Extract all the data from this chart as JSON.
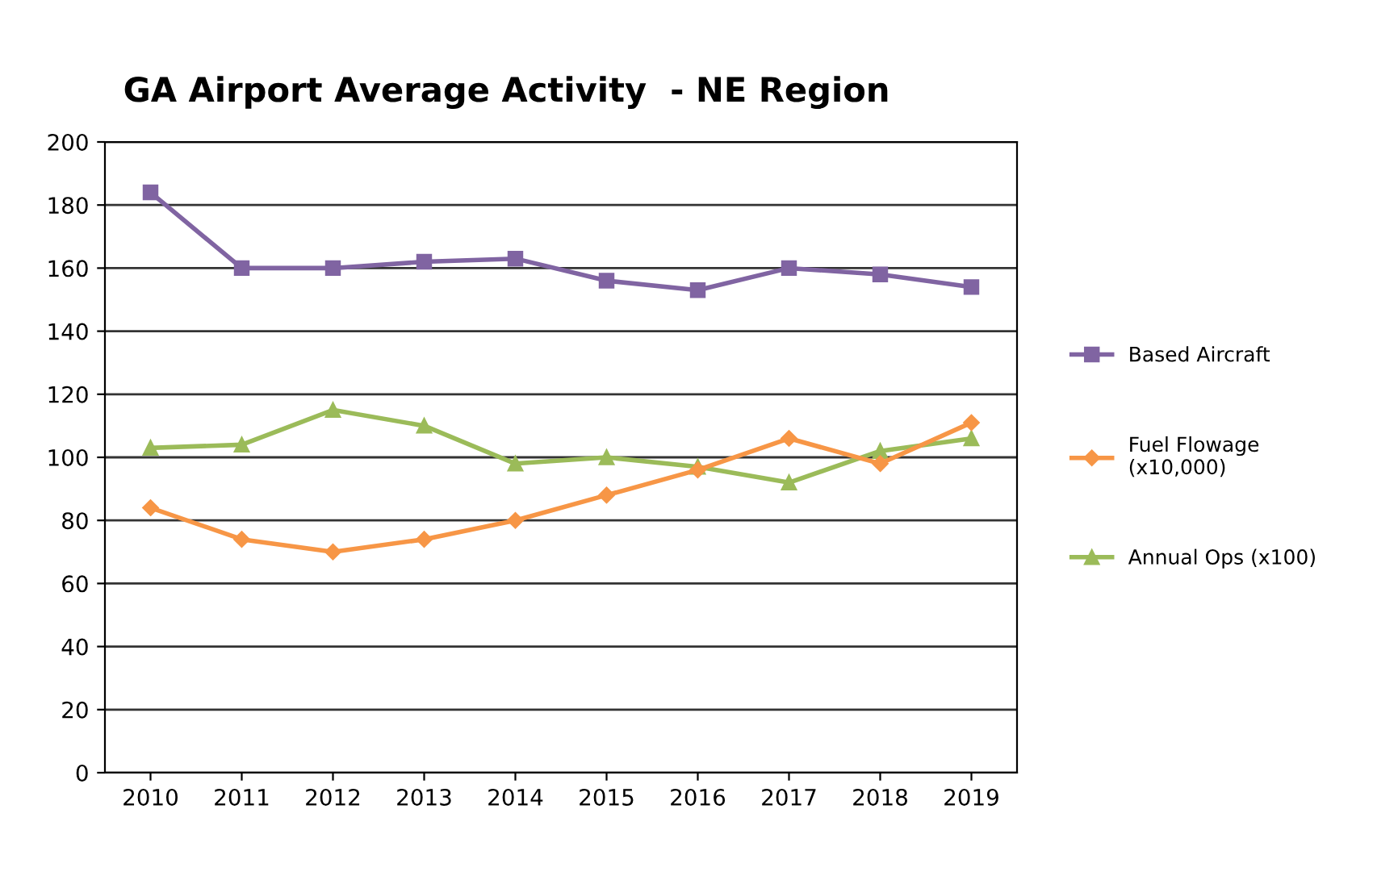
{
  "chart_data": {
    "type": "line",
    "title": "GA Airport Average Activity  - NE Region",
    "categories": [
      "2010",
      "2011",
      "2012",
      "2013",
      "2014",
      "2015",
      "2016",
      "2017",
      "2018",
      "2019"
    ],
    "series": [
      {
        "name": "Based Aircraft",
        "color": "#8064a2",
        "marker": "square",
        "values": [
          184,
          160,
          160,
          162,
          163,
          156,
          153,
          160,
          158,
          154
        ]
      },
      {
        "name": "Fuel Flowage\n(x10,000)",
        "color": "#f79646",
        "marker": "diamond",
        "values": [
          84,
          74,
          70,
          74,
          80,
          88,
          96,
          106,
          98,
          111
        ]
      },
      {
        "name": "Annual Ops (x100)",
        "color": "#9bbb59",
        "marker": "triangle",
        "values": [
          103,
          104,
          115,
          110,
          98,
          100,
          97,
          92,
          102,
          106
        ]
      }
    ],
    "ylim": [
      0,
      200
    ],
    "yticks": [
      0,
      20,
      40,
      60,
      80,
      100,
      120,
      140,
      160,
      180,
      200
    ],
    "grid": "y",
    "legend": "right",
    "line_style": "solid"
  }
}
